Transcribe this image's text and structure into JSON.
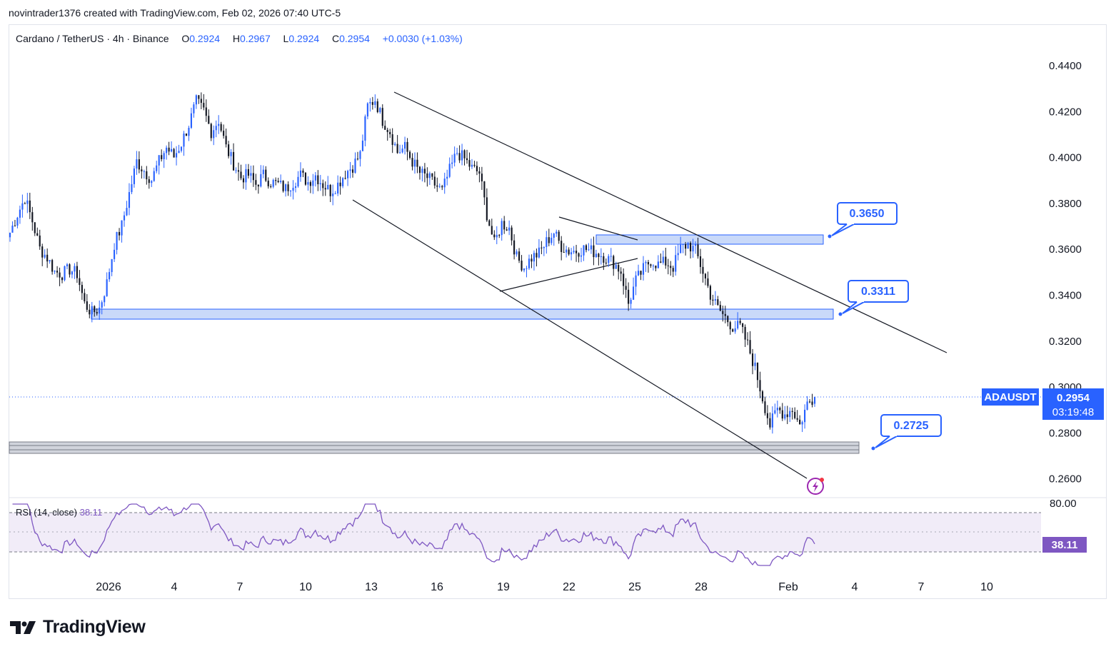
{
  "header": {
    "credit": "novintrader1376 created with TradingView.com, Feb 02, 2026 07:40 UTC-5"
  },
  "legend": {
    "symbol": "Cardano / TetherUS · 4h · Binance",
    "open_label": "O",
    "open": "0.2924",
    "high_label": "H",
    "high": "0.2967",
    "low_label": "L",
    "low": "0.2924",
    "close_label": "C",
    "close": "0.2954",
    "change": "+0.0030 (+1.03%)"
  },
  "price_axis": {
    "ticks": [
      "0.4400",
      "0.4200",
      "0.4000",
      "0.3800",
      "0.3600",
      "0.3400",
      "0.3200",
      "0.3000",
      "0.2800",
      "0.2600"
    ]
  },
  "time_axis": {
    "ticks": [
      "2026",
      "4",
      "7",
      "10",
      "13",
      "16",
      "19",
      "22",
      "25",
      "28",
      "Feb",
      "4",
      "7",
      "10"
    ]
  },
  "last_price": {
    "symbol": "ADAUSDT",
    "price": "0.2954",
    "countdown": "03:19:48"
  },
  "callouts": [
    {
      "label": "0.3650"
    },
    {
      "label": "0.3311"
    },
    {
      "label": "0.2725"
    }
  ],
  "rsi": {
    "label": "RSI (14, close)",
    "value": "38.11",
    "axis_top": "80.00",
    "badge": "38.11",
    "line_color": "#7e57c2",
    "band_color": "#ede7f6"
  },
  "footer": {
    "brand": "TradingView"
  },
  "colors": {
    "up": "#2962ff",
    "down": "#131722",
    "zone_fill": "#bbd0f7",
    "zone_border": "#2962ff",
    "support_fill": "#d1d4dc",
    "accent": "#2962ff"
  },
  "chart_data": {
    "type": "candlestick",
    "symbol": "ADAUSDT",
    "timeframe": "4h",
    "ylim": [
      0.255,
      0.448
    ],
    "x_ticks": [
      "2026",
      "4",
      "7",
      "10",
      "13",
      "16",
      "19",
      "22",
      "25",
      "28",
      "Feb",
      "4",
      "7",
      "10"
    ],
    "last": {
      "open": 0.2924,
      "high": 0.2967,
      "low": 0.2924,
      "close": 0.2954
    },
    "closes_anchor": [
      0.367,
      0.375,
      0.382,
      0.372,
      0.36,
      0.356,
      0.35,
      0.349,
      0.351,
      0.349,
      0.336,
      0.332,
      0.334,
      0.345,
      0.362,
      0.37,
      0.384,
      0.398,
      0.394,
      0.39,
      0.398,
      0.404,
      0.4,
      0.406,
      0.414,
      0.424,
      0.42,
      0.411,
      0.416,
      0.404,
      0.397,
      0.391,
      0.392,
      0.388,
      0.392,
      0.389,
      0.388,
      0.386,
      0.389,
      0.392,
      0.389,
      0.392,
      0.388,
      0.385,
      0.388,
      0.393,
      0.396,
      0.401,
      0.422,
      0.425,
      0.416,
      0.411,
      0.402,
      0.404,
      0.398,
      0.393,
      0.391,
      0.388,
      0.385,
      0.394,
      0.402,
      0.399,
      0.395,
      0.393,
      0.375,
      0.362,
      0.371,
      0.369,
      0.356,
      0.352,
      0.356,
      0.358,
      0.363,
      0.367,
      0.361,
      0.359,
      0.359,
      0.36,
      0.359,
      0.358,
      0.356,
      0.354,
      0.35,
      0.336,
      0.346,
      0.351,
      0.355,
      0.353,
      0.354,
      0.352,
      0.36,
      0.362,
      0.359,
      0.35,
      0.34,
      0.334,
      0.33,
      0.326,
      0.326,
      0.318,
      0.308,
      0.295,
      0.283,
      0.29,
      0.288,
      0.29,
      0.283,
      0.2924,
      0.2954
    ],
    "zones": [
      {
        "name": "resistance",
        "from": 0.3628,
        "to": 0.3671,
        "label": "0.3650"
      },
      {
        "name": "resistance",
        "from": 0.329,
        "to": 0.3336,
        "label": "0.3311"
      },
      {
        "name": "support",
        "from": 0.2705,
        "to": 0.2755,
        "label": "0.2725"
      }
    ],
    "rsi": {
      "period": 14,
      "last": 38.11,
      "upper": 70,
      "lower": 30,
      "axis_top": 80
    }
  }
}
